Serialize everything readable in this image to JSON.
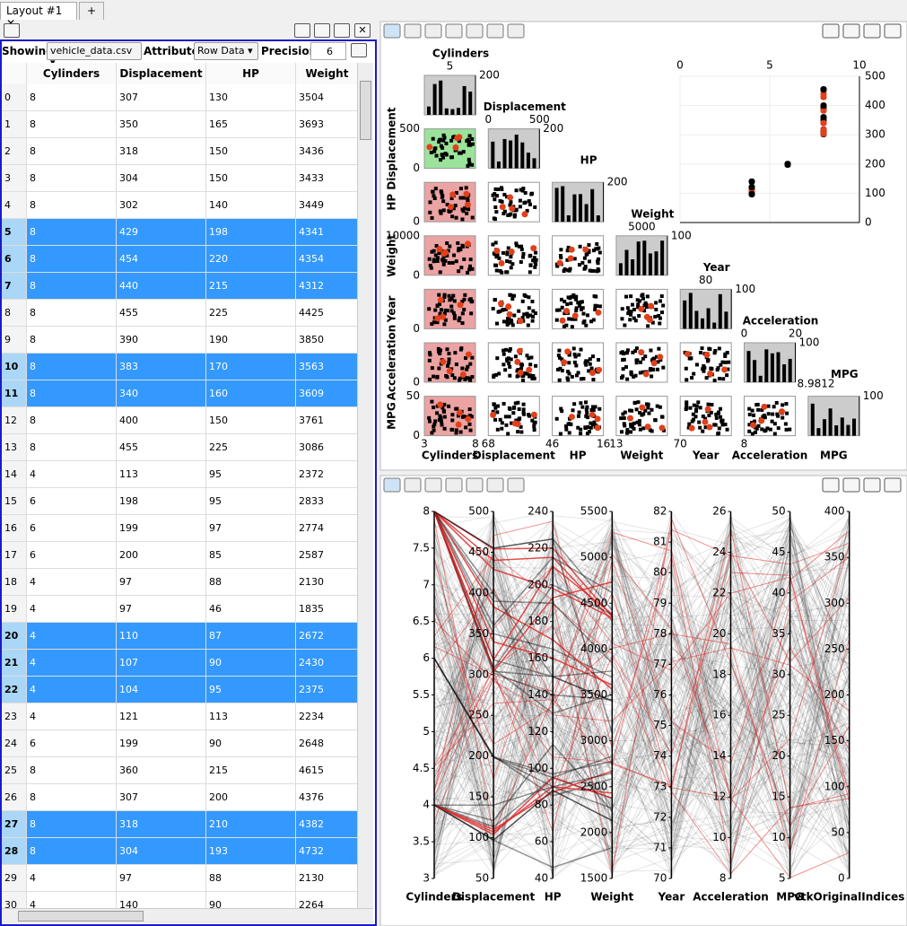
{
  "tabs": [
    "Layout #1",
    "+"
  ],
  "spreadsheet": {
    "showing_label": "Showing",
    "file": "vehicle_data.csv",
    "attribute_label": "Attribute:",
    "attribute": "Row Data",
    "precision_label": "Precision:",
    "precision": 6,
    "columns": [
      "Cylinders",
      "Displacement",
      "HP",
      "Weight"
    ],
    "rows": [
      [
        0,
        8,
        307,
        130,
        3504
      ],
      [
        1,
        8,
        350,
        165,
        3693
      ],
      [
        2,
        8,
        318,
        150,
        3436
      ],
      [
        3,
        8,
        304,
        150,
        3433
      ],
      [
        4,
        8,
        302,
        140,
        3449
      ],
      [
        5,
        8,
        429,
        198,
        4341
      ],
      [
        6,
        8,
        454,
        220,
        4354
      ],
      [
        7,
        8,
        440,
        215,
        4312
      ],
      [
        8,
        8,
        455,
        225,
        4425
      ],
      [
        9,
        8,
        390,
        190,
        3850
      ],
      [
        10,
        8,
        383,
        170,
        3563
      ],
      [
        11,
        8,
        340,
        160,
        3609
      ],
      [
        12,
        8,
        400,
        150,
        3761
      ],
      [
        13,
        8,
        455,
        225,
        3086
      ],
      [
        14,
        4,
        113,
        95,
        2372
      ],
      [
        15,
        6,
        198,
        95,
        2833
      ],
      [
        16,
        6,
        199,
        97,
        2774
      ],
      [
        17,
        6,
        200,
        85,
        2587
      ],
      [
        18,
        4,
        97,
        88,
        2130
      ],
      [
        19,
        4,
        97,
        46,
        1835
      ],
      [
        20,
        4,
        110,
        87,
        2672
      ],
      [
        21,
        4,
        107,
        90,
        2430
      ],
      [
        22,
        4,
        104,
        95,
        2375
      ],
      [
        23,
        4,
        121,
        113,
        2234
      ],
      [
        24,
        6,
        199,
        90,
        2648
      ],
      [
        25,
        8,
        360,
        215,
        4615
      ],
      [
        26,
        8,
        307,
        200,
        4376
      ],
      [
        27,
        8,
        318,
        210,
        4382
      ],
      [
        28,
        8,
        304,
        193,
        4732
      ],
      [
        29,
        4,
        97,
        88,
        2130
      ],
      [
        30,
        4,
        140,
        90,
        2264
      ]
    ],
    "selected_rows": [
      5,
      6,
      7,
      10,
      11,
      20,
      21,
      22,
      27,
      28
    ]
  },
  "matrix": {
    "variables": [
      {
        "name": "Cylinders",
        "top_ticks": [
          5
        ],
        "right_tick": 200,
        "left_ticks": [],
        "bottom_ticks": [
          3,
          8
        ]
      },
      {
        "name": "Displacement",
        "top_ticks": [
          0,
          500
        ],
        "right_tick": 200,
        "left_ticks": [
          500,
          0
        ],
        "bottom_ticks": [
          68
        ]
      },
      {
        "name": "HP",
        "top_ticks": [],
        "right_tick": 200,
        "left_ticks": [
          0
        ],
        "bottom_ticks": [
          46,
          16
        ]
      },
      {
        "name": "Weight",
        "top_ticks": [
          5000
        ],
        "right_tick": 100,
        "left_ticks": [
          10000,
          0
        ],
        "bottom_ticks": [
          13
        ]
      },
      {
        "name": "Year",
        "top_ticks": [
          80
        ],
        "right_tick": 100,
        "left_ticks": [
          0
        ],
        "bottom_ticks": [
          70
        ]
      },
      {
        "name": "Acceleration",
        "top_ticks": [
          0,
          20
        ],
        "right_tick": 100,
        "left_ticks": [
          0
        ],
        "bottom_ticks": [
          8
        ],
        "overflow_tick": 8.9812
      },
      {
        "name": "MPG",
        "top_ticks": [],
        "right_tick": 100,
        "left_ticks": [
          50,
          0
        ],
        "bottom_ticks": []
      }
    ],
    "detail": {
      "xlim": [
        0,
        10
      ],
      "xticks": [
        0,
        5,
        10
      ],
      "ylim": [
        0,
        500
      ],
      "yticks": [
        0,
        100,
        200,
        300,
        400,
        500
      ]
    }
  },
  "parallel": {
    "axes": [
      {
        "name": "Cylinders",
        "lim": [
          3,
          8
        ],
        "ticks": [
          3,
          3.5,
          4,
          4.5,
          5,
          5.5,
          6,
          6.5,
          7,
          7.5,
          8
        ]
      },
      {
        "name": "Displacement",
        "lim": [
          50,
          500
        ],
        "ticks": [
          50,
          100,
          150,
          200,
          250,
          300,
          350,
          400,
          450,
          500
        ]
      },
      {
        "name": "HP",
        "lim": [
          40,
          240
        ],
        "ticks": [
          40,
          60,
          80,
          100,
          120,
          140,
          160,
          180,
          200,
          220,
          240
        ]
      },
      {
        "name": "Weight",
        "lim": [
          1500,
          5500
        ],
        "ticks": [
          1500,
          2000,
          2500,
          3000,
          3500,
          4000,
          4500,
          5000,
          5500
        ]
      },
      {
        "name": "Year",
        "lim": [
          70,
          82
        ],
        "ticks": [
          70,
          71,
          72,
          73,
          74,
          75,
          76,
          77,
          78,
          79,
          80,
          81,
          82
        ]
      },
      {
        "name": "Acceleration",
        "lim": [
          8,
          26
        ],
        "ticks": [
          8,
          10,
          12,
          14,
          16,
          18,
          20,
          22,
          24,
          26
        ]
      },
      {
        "name": "MPG",
        "lim": [
          5,
          50
        ],
        "ticks": [
          5,
          10,
          15,
          20,
          25,
          30,
          35,
          40,
          45,
          50
        ]
      },
      {
        "name": "vtkOriginalIndices",
        "lim": [
          0,
          400
        ],
        "ticks": [
          0,
          50,
          100,
          150,
          200,
          250,
          300,
          350,
          400
        ]
      }
    ]
  }
}
